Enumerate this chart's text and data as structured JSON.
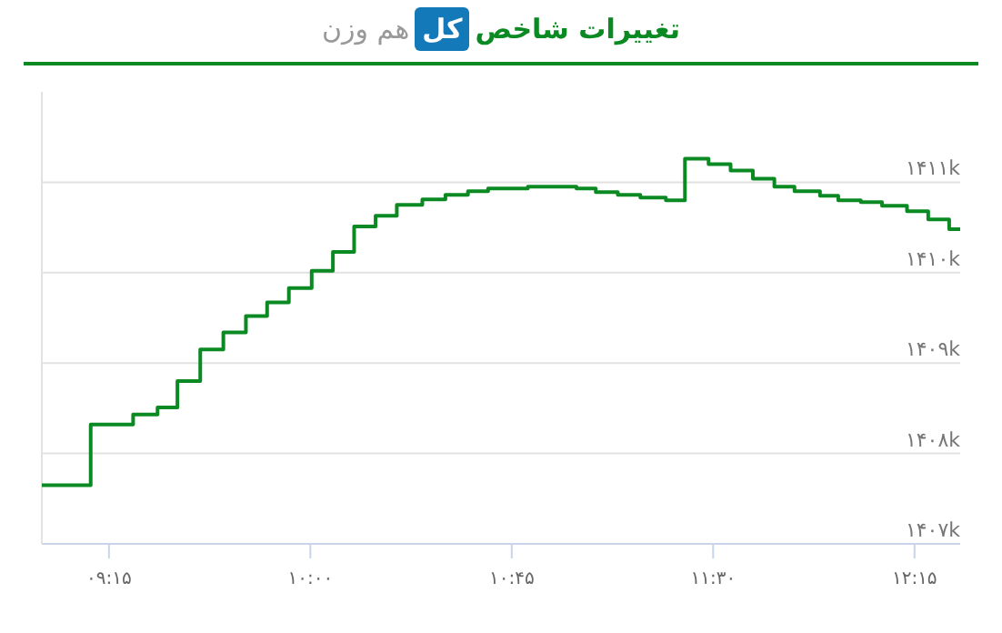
{
  "chart_data": {
    "type": "step",
    "title": "تغییرات شاخص کل",
    "subtitle": "هم وزن",
    "color": "#0b8a23",
    "x": [
      9.0,
      9.182,
      9.34,
      9.431,
      9.505,
      9.59,
      9.676,
      9.76,
      9.839,
      9.92,
      10.005,
      10.084,
      10.163,
      10.243,
      10.322,
      10.417,
      10.503,
      10.587,
      10.662,
      10.81,
      10.991,
      11.063,
      11.145,
      11.229,
      11.324,
      11.395,
      11.483,
      11.565,
      11.648,
      11.728,
      11.803,
      11.898,
      11.966,
      12.05,
      12.129,
      12.222,
      12.301,
      12.379,
      12.42
    ],
    "values": [
      1407650,
      1408320,
      1408430,
      1408510,
      1408800,
      1409150,
      1409340,
      1409520,
      1409670,
      1409830,
      1410020,
      1410230,
      1410510,
      1410630,
      1410750,
      1410810,
      1410860,
      1410900,
      1410930,
      1410950,
      1410930,
      1410890,
      1410860,
      1410830,
      1410800,
      1411260,
      1411200,
      1411130,
      1411040,
      1410950,
      1410900,
      1410850,
      1410800,
      1410780,
      1410740,
      1410680,
      1410590,
      1410480,
      1410480
    ],
    "xlim": [
      9.0,
      12.42
    ],
    "ylim": [
      1407000,
      1412000
    ],
    "xticks": [
      {
        "value": 9.25,
        "label": "۰۹:۱۵"
      },
      {
        "value": 10.0,
        "label": "۱۰:۰۰"
      },
      {
        "value": 10.75,
        "label": "۱۰:۴۵"
      },
      {
        "value": 11.5,
        "label": "۱۱:۳۰"
      },
      {
        "value": 12.25,
        "label": "۱۲:۱۵"
      }
    ],
    "yticks": [
      {
        "value": 1407000,
        "label": "۱۴۰۷k"
      },
      {
        "value": 1408000,
        "label": "۱۴۰۸k"
      },
      {
        "value": 1409000,
        "label": "۱۴۰۹k"
      },
      {
        "value": 1410000,
        "label": "۱۴۱۰k"
      },
      {
        "value": 1411000,
        "label": "۱۴۱۱k"
      }
    ],
    "grid": "y"
  }
}
